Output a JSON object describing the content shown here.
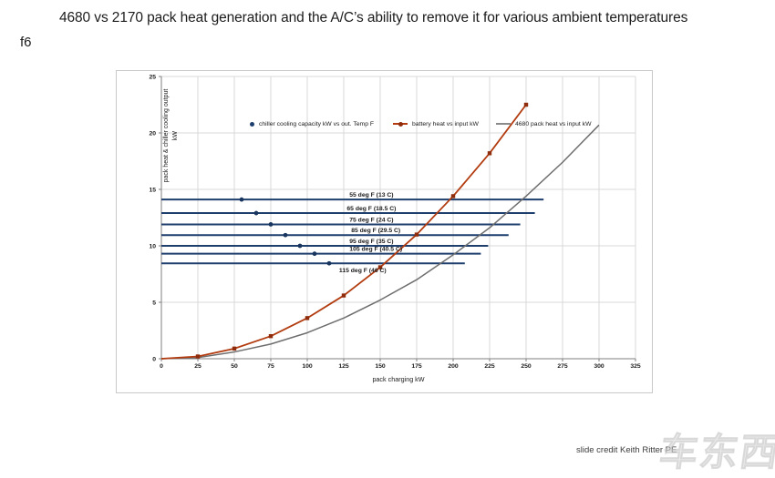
{
  "page": {
    "title": "4680 vs 2170 pack heat generation and the A/C’s ability to remove it for various ambient temperatures",
    "figure_label": "f6",
    "credit": "slide credit Keith Ritter PE",
    "watermark": "车东西"
  },
  "chart_data": {
    "type": "line",
    "title": "",
    "xlabel": "pack charging kW",
    "ylabel": "pack heat & chiller cooling output",
    "ylabel_unit": "kW",
    "xlim": [
      0,
      325
    ],
    "ylim": [
      0,
      25
    ],
    "x_ticks": [
      0,
      25,
      50,
      75,
      100,
      125,
      150,
      175,
      200,
      225,
      250,
      275,
      300,
      325
    ],
    "y_ticks": [
      0,
      5,
      10,
      15,
      20,
      25
    ],
    "grid": true,
    "legend_position": "inside-top",
    "colors": {
      "navy": "#1e3f6e",
      "navy_dot": "#17355f",
      "red": "#b23c10",
      "red_marker": "#8e2c0c",
      "gray": "#6e6e6e",
      "grid": "#d9d9d9",
      "axis": "#7f7f7f",
      "text": "#1a1a1a"
    },
    "series": [
      {
        "name": "chiller cooling capacity kW vs out. Temp F",
        "type": "scatter",
        "color": "#17355f",
        "x_is": "ambient temp deg F plotted on kW axis",
        "x": [
          55,
          65,
          75,
          85,
          95,
          105,
          115
        ],
        "y": [
          14.1,
          12.9,
          11.9,
          10.95,
          10.0,
          9.3,
          8.45
        ]
      },
      {
        "name": "battery heat vs input kW",
        "type": "line",
        "marker": "square",
        "color": "#b23c10",
        "x": [
          0,
          25,
          50,
          75,
          100,
          125,
          150,
          175,
          200,
          225,
          250
        ],
        "y": [
          0,
          0.2,
          0.9,
          2.0,
          3.6,
          5.6,
          8.1,
          11.0,
          14.4,
          18.2,
          22.5
        ]
      },
      {
        "name": "4680 pack heat vs input kW",
        "type": "line",
        "color": "#6e6e6e",
        "x": [
          0,
          25,
          50,
          75,
          100,
          125,
          150,
          175,
          200,
          225,
          250,
          275,
          300
        ],
        "y": [
          0,
          0.1,
          0.6,
          1.3,
          2.3,
          3.6,
          5.2,
          7.0,
          9.2,
          11.6,
          14.4,
          17.4,
          20.7
        ]
      }
    ],
    "ambient_capacity_lines": [
      {
        "label": "55 deg F (13 C)",
        "deg_f": 55,
        "cooling_kw": 14.1,
        "x_end_kw": 262,
        "label_x_kw": 144,
        "label_side": "above"
      },
      {
        "label": "65 deg F (18.5 C)",
        "deg_f": 65,
        "cooling_kw": 12.9,
        "x_end_kw": 256,
        "label_x_kw": 144,
        "label_side": "above"
      },
      {
        "label": "75 deg F (24 C)",
        "deg_f": 75,
        "cooling_kw": 11.9,
        "x_end_kw": 246,
        "label_x_kw": 144,
        "label_side": "above"
      },
      {
        "label": "85 deg F (29.5 C)",
        "deg_f": 85,
        "cooling_kw": 10.95,
        "x_end_kw": 238,
        "label_x_kw": 147,
        "label_side": "above"
      },
      {
        "label": "95 deg F (35 C)",
        "deg_f": 95,
        "cooling_kw": 10.0,
        "x_end_kw": 224,
        "label_x_kw": 144,
        "label_side": "above"
      },
      {
        "label": "105 deg F (40.5 C)",
        "deg_f": 105,
        "cooling_kw": 9.3,
        "x_end_kw": 219,
        "label_x_kw": 147,
        "label_side": "above"
      },
      {
        "label": "115 deg F (46 C)",
        "deg_f": 115,
        "cooling_kw": 8.45,
        "x_end_kw": 208,
        "label_x_kw": 138,
        "label_side": "below"
      }
    ]
  }
}
